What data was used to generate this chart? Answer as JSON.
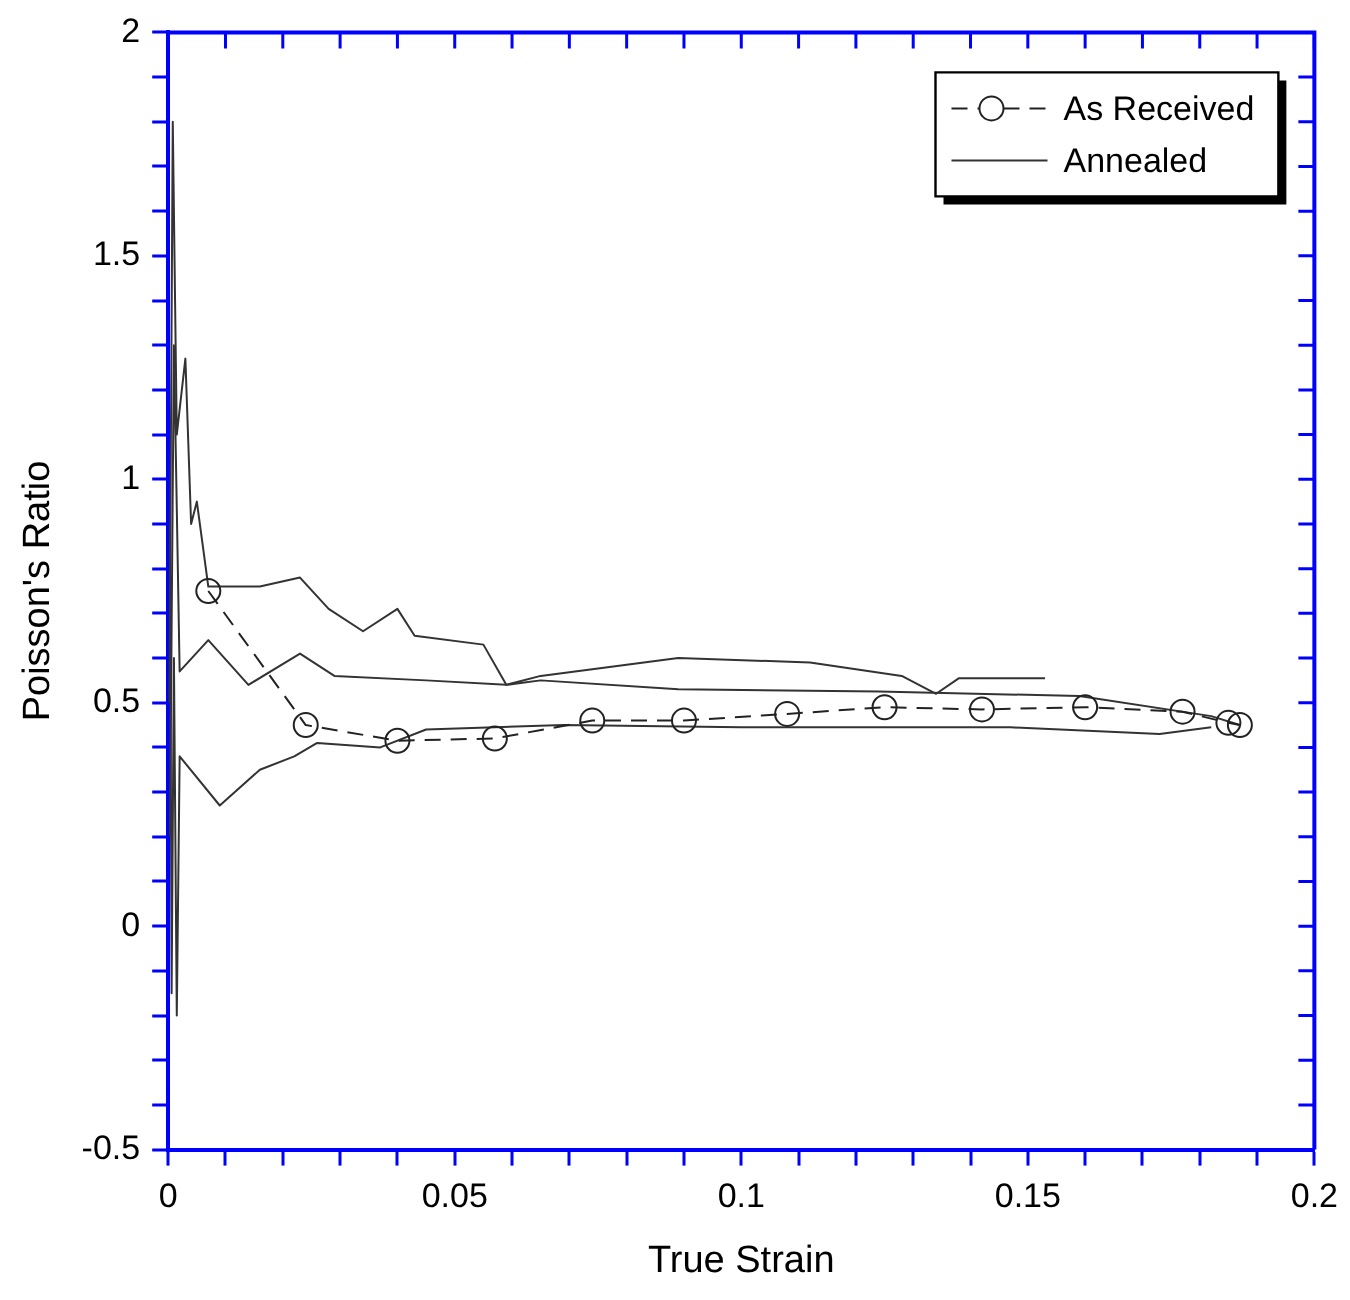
{
  "chart_data": {
    "type": "line",
    "xlabel": "True Strain",
    "ylabel": "Poisson's Ratio",
    "xlim": [
      0,
      0.2
    ],
    "ylim": [
      -0.5,
      2
    ],
    "xticks": [
      0,
      {
        "value": 0.01,
        "label": null
      },
      {
        "value": 0.02,
        "label": null
      },
      {
        "value": 0.03,
        "label": null
      },
      {
        "value": 0.04,
        "label": null
      },
      0.05,
      {
        "value": 0.06,
        "label": null
      },
      {
        "value": 0.07,
        "label": null
      },
      {
        "value": 0.08,
        "label": null
      },
      {
        "value": 0.09,
        "label": null
      },
      0.1,
      {
        "value": 0.11,
        "label": null
      },
      {
        "value": 0.12,
        "label": null
      },
      {
        "value": 0.13,
        "label": null
      },
      {
        "value": 0.14,
        "label": null
      },
      0.15,
      {
        "value": 0.16,
        "label": null
      },
      {
        "value": 0.17,
        "label": null
      },
      {
        "value": 0.18,
        "label": null
      },
      {
        "value": 0.19,
        "label": null
      },
      0.2
    ],
    "yticks": [
      -0.5,
      {
        "value": -0.4,
        "label": null
      },
      {
        "value": -0.3,
        "label": null
      },
      {
        "value": -0.2,
        "label": null
      },
      {
        "value": -0.1,
        "label": null
      },
      0,
      {
        "value": 0.1,
        "label": null
      },
      {
        "value": 0.2,
        "label": null
      },
      {
        "value": 0.3,
        "label": null
      },
      {
        "value": 0.4,
        "label": null
      },
      0.5,
      {
        "value": 0.6,
        "label": null
      },
      {
        "value": 0.7,
        "label": null
      },
      {
        "value": 0.8,
        "label": null
      },
      {
        "value": 0.9,
        "label": null
      },
      1,
      {
        "value": 1.1,
        "label": null
      },
      {
        "value": 1.2,
        "label": null
      },
      {
        "value": 1.3,
        "label": null
      },
      {
        "value": 1.4,
        "label": null
      },
      1.5,
      {
        "value": 1.6,
        "label": null
      },
      {
        "value": 1.7,
        "label": null
      },
      {
        "value": 1.8,
        "label": null
      },
      {
        "value": 1.9,
        "label": null
      },
      2
    ],
    "grid": false,
    "legend": "top right",
    "series": [
      {
        "name": "As Received",
        "color": "#222222",
        "marker": "circle",
        "line_style": "dashed",
        "x": [
          0.007,
          0.024,
          0.04,
          0.057,
          0.074,
          0.09,
          0.108,
          0.125,
          0.142,
          0.16,
          0.177,
          0.185,
          0.187
        ],
        "values": [
          0.75,
          0.45,
          0.415,
          0.42,
          0.46,
          0.46,
          0.475,
          0.49,
          0.485,
          0.49,
          0.48,
          0.455,
          0.45
        ]
      },
      {
        "name": "Annealed",
        "color": "#333333",
        "marker": "none",
        "line_style": "solid",
        "x": [
          0.0002,
          0.0008,
          0.0015,
          0.003,
          0.004,
          0.005,
          0.007,
          0.016,
          0.023,
          0.028,
          0.034,
          0.04,
          0.043,
          0.055,
          0.059,
          0.065,
          0.089,
          0.112,
          0.128,
          0.134,
          0.138,
          0.153
        ],
        "values": [
          0.5,
          1.8,
          1.1,
          1.27,
          0.9,
          0.95,
          0.76,
          0.76,
          0.78,
          0.71,
          0.66,
          0.71,
          0.65,
          0.63,
          0.54,
          0.56,
          0.6,
          0.59,
          0.56,
          0.52,
          0.555,
          0.555
        ]
      },
      {
        "color": "#333333",
        "marker": "none",
        "line_style": "solid",
        "x": [
          0.0003,
          0.001,
          0.002,
          0.007,
          0.014,
          0.023,
          0.029,
          0.045,
          0.059,
          0.065,
          0.089,
          0.124,
          0.159,
          0.182,
          0.187
        ],
        "values": [
          0.2,
          1.3,
          0.57,
          0.64,
          0.54,
          0.61,
          0.56,
          0.55,
          0.54,
          0.55,
          0.53,
          0.525,
          0.515,
          0.47,
          0.45
        ]
      },
      {
        "color": "#333333",
        "marker": "none",
        "line_style": "solid",
        "x": [
          0.0003,
          0.0006,
          0.001,
          0.0015,
          0.002,
          0.009,
          0.016,
          0.022,
          0.026,
          0.037,
          0.045,
          0.069,
          0.1,
          0.147,
          0.173,
          0.182
        ],
        "values": [
          0.9,
          -0.15,
          0.6,
          -0.2,
          0.38,
          0.27,
          0.35,
          0.38,
          0.41,
          0.4,
          0.44,
          0.45,
          0.445,
          0.445,
          0.43,
          0.445
        ]
      }
    ]
  }
}
